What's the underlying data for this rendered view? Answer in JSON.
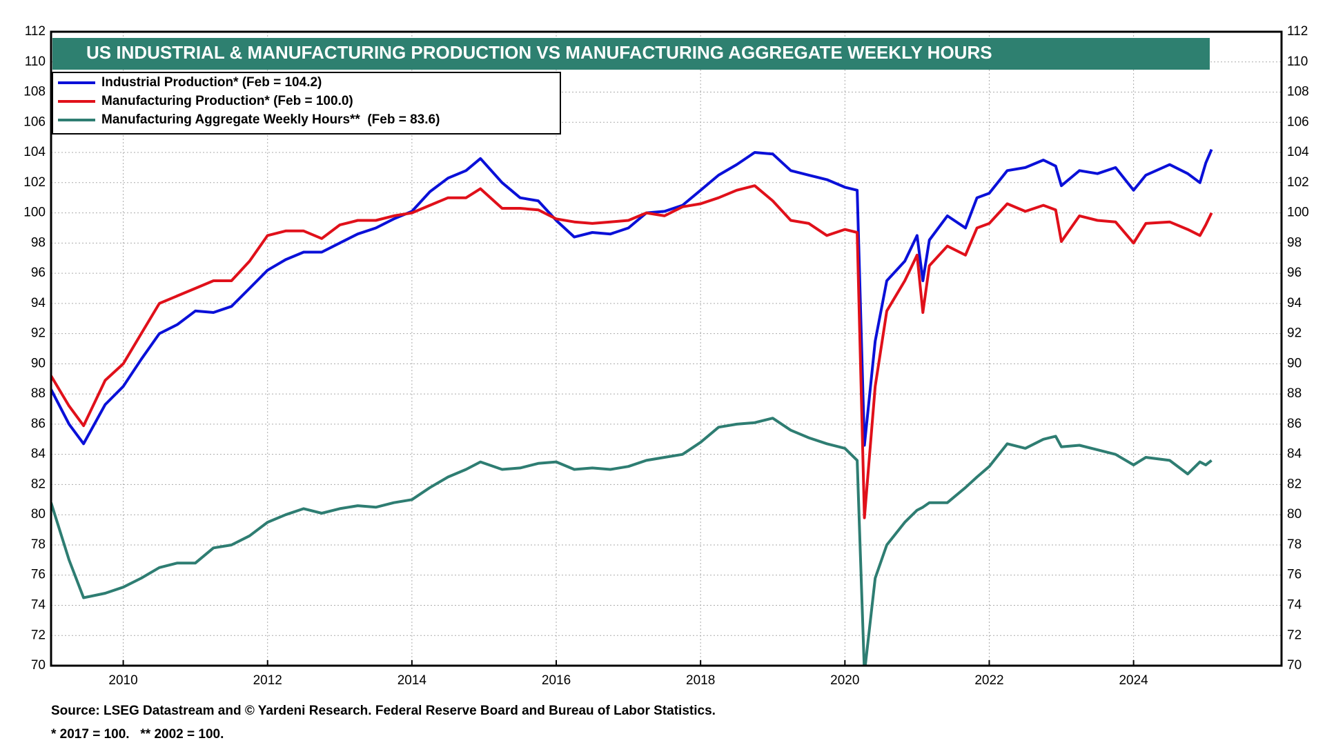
{
  "chart_data": {
    "type": "line",
    "title": "US INDUSTRIAL & MANUFACTURING PRODUCTION VS MANUFACTURING AGGREGATE WEEKLY HOURS",
    "source": "Source: LSEG Datastream and © Yardeni Research. Federal Reserve Board and Bureau of Labor Statistics.",
    "footnote": "* 2017 = 100.   ** 2002 = 100.",
    "xlim": [
      2009,
      2026.05
    ],
    "xticks": [
      2010,
      2012,
      2014,
      2016,
      2018,
      2020,
      2022,
      2024
    ],
    "ylim": [
      70,
      112
    ],
    "yticks": [
      70,
      72,
      74,
      76,
      78,
      80,
      82,
      84,
      86,
      88,
      90,
      92,
      94,
      96,
      98,
      100,
      102,
      104,
      106,
      108,
      110,
      112
    ],
    "grid": true,
    "legend": "upper left",
    "x": [
      2009,
      2009.25,
      2009.45,
      2009.75,
      2010,
      2010.25,
      2010.5,
      2010.75,
      2011,
      2011.25,
      2011.5,
      2011.75,
      2012,
      2012.25,
      2012.5,
      2012.75,
      2013,
      2013.25,
      2013.5,
      2013.75,
      2014,
      2014.25,
      2014.5,
      2014.75,
      2014.95,
      2015.25,
      2015.5,
      2015.75,
      2016,
      2016.25,
      2016.5,
      2016.75,
      2017,
      2017.25,
      2017.5,
      2017.75,
      2018,
      2018.25,
      2018.5,
      2018.75,
      2019,
      2019.25,
      2019.5,
      2019.75,
      2020,
      2020.17,
      2020.27,
      2020.42,
      2020.58,
      2020.83,
      2021,
      2021.08,
      2021.17,
      2021.42,
      2021.67,
      2021.83,
      2022,
      2022.25,
      2022.5,
      2022.75,
      2022.92,
      2023,
      2023.25,
      2023.5,
      2023.75,
      2024,
      2024.17,
      2024.5,
      2024.75,
      2024.92,
      2025,
      2025.08
    ],
    "series": [
      {
        "name": "Industrial Production* (Feb = 104.2)",
        "color": "#0a10d8",
        "values": [
          88.3,
          86.0,
          84.7,
          87.3,
          88.5,
          90.3,
          92.0,
          92.6,
          93.5,
          93.4,
          93.8,
          95.0,
          96.2,
          96.9,
          97.4,
          97.4,
          98.0,
          98.6,
          99.0,
          99.6,
          100.1,
          101.4,
          102.3,
          102.8,
          103.6,
          102.0,
          101.0,
          100.8,
          99.5,
          98.4,
          98.7,
          98.6,
          99.0,
          100.0,
          100.1,
          100.5,
          101.5,
          102.5,
          103.2,
          104.0,
          103.9,
          102.8,
          102.5,
          102.2,
          101.7,
          101.5,
          84.6,
          91.5,
          95.5,
          96.8,
          98.5,
          95.5,
          98.2,
          99.8,
          99.0,
          101.0,
          101.3,
          102.8,
          103.0,
          103.5,
          103.1,
          101.8,
          102.8,
          102.6,
          103.0,
          101.5,
          102.5,
          103.2,
          102.6,
          102.0,
          103.3,
          104.2
        ]
      },
      {
        "name": "Manufacturing Production* (Feb = 100.0)",
        "color": "#e0101a",
        "values": [
          89.2,
          87.2,
          85.9,
          88.9,
          90.0,
          92.0,
          94.0,
          94.5,
          95.0,
          95.5,
          95.5,
          96.8,
          98.5,
          98.8,
          98.8,
          98.3,
          99.2,
          99.5,
          99.5,
          99.8,
          100.0,
          100.5,
          101.0,
          101.0,
          101.6,
          100.3,
          100.3,
          100.2,
          99.6,
          99.4,
          99.3,
          99.4,
          99.5,
          100.0,
          99.8,
          100.4,
          100.6,
          101.0,
          101.5,
          101.8,
          100.8,
          99.5,
          99.3,
          98.5,
          98.9,
          98.7,
          79.8,
          88.5,
          93.5,
          95.5,
          97.2,
          93.4,
          96.5,
          97.8,
          97.2,
          99.0,
          99.3,
          100.6,
          100.1,
          100.5,
          100.2,
          98.1,
          99.8,
          99.5,
          99.4,
          98.0,
          99.3,
          99.4,
          98.9,
          98.5,
          99.2,
          100.0
        ]
      },
      {
        "name": "Manufacturing Aggregate Weekly Hours**  (Feb = 83.6)",
        "color": "#2e7d72",
        "values": [
          80.8,
          77.0,
          74.5,
          74.8,
          75.2,
          75.8,
          76.5,
          76.8,
          76.8,
          77.8,
          78.0,
          78.6,
          79.5,
          80.0,
          80.4,
          80.1,
          80.4,
          80.6,
          80.5,
          80.8,
          81.0,
          81.8,
          82.5,
          83.0,
          83.5,
          83.0,
          83.1,
          83.4,
          83.5,
          83.0,
          83.1,
          83.0,
          83.2,
          83.6,
          83.8,
          84.0,
          84.8,
          85.8,
          86.0,
          86.1,
          86.4,
          85.6,
          85.1,
          84.7,
          84.4,
          83.6,
          69.5,
          75.8,
          78.0,
          79.5,
          80.3,
          80.5,
          80.8,
          80.8,
          81.8,
          82.5,
          83.2,
          84.7,
          84.4,
          85.0,
          85.2,
          84.5,
          84.6,
          84.3,
          84.0,
          83.3,
          83.8,
          83.6,
          82.7,
          83.5,
          83.3,
          83.6
        ]
      }
    ]
  }
}
